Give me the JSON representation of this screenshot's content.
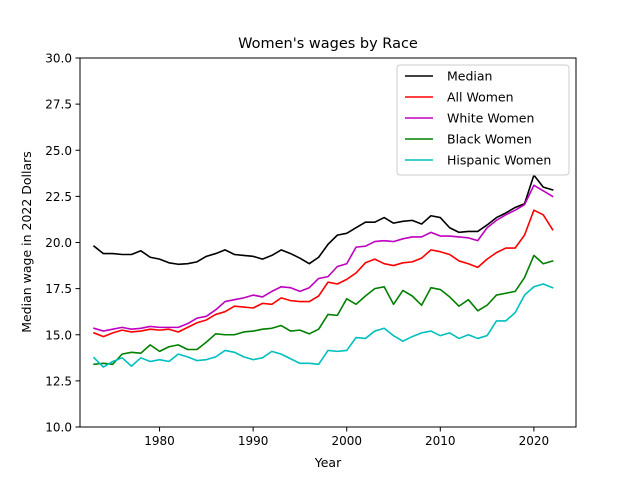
{
  "chart_data": {
    "type": "line",
    "title": "Women's wages by Race",
    "xlabel": "Year",
    "ylabel": "Median wage in 2022 Dollars",
    "xlim": [
      1971.5,
      2024.5
    ],
    "ylim": [
      10.0,
      30.0
    ],
    "xticks": [
      1980,
      1990,
      2000,
      2010,
      2020
    ],
    "yticks": [
      10.0,
      12.5,
      15.0,
      17.5,
      20.0,
      22.5,
      25.0,
      27.5,
      30.0
    ],
    "ytick_labels": [
      "10.0",
      "12.5",
      "15.0",
      "17.5",
      "20.0",
      "22.5",
      "25.0",
      "27.5",
      "30.0"
    ],
    "grid": false,
    "legend_position": "top-right",
    "x": [
      1973,
      1974,
      1975,
      1976,
      1977,
      1978,
      1979,
      1980,
      1981,
      1982,
      1983,
      1984,
      1985,
      1986,
      1987,
      1988,
      1989,
      1990,
      1991,
      1992,
      1993,
      1994,
      1995,
      1996,
      1997,
      1998,
      1999,
      2000,
      2001,
      2002,
      2003,
      2004,
      2005,
      2006,
      2007,
      2008,
      2009,
      2010,
      2011,
      2012,
      2013,
      2014,
      2015,
      2016,
      2017,
      2018,
      2019,
      2020,
      2021,
      2022
    ],
    "series": [
      {
        "name": "Median",
        "color": "#000000",
        "values": [
          19.8,
          19.4,
          19.4,
          19.35,
          19.35,
          19.55,
          19.2,
          19.1,
          18.9,
          18.82,
          18.85,
          18.95,
          19.25,
          19.4,
          19.6,
          19.35,
          19.3,
          19.25,
          19.1,
          19.3,
          19.6,
          19.4,
          19.15,
          18.85,
          19.2,
          19.9,
          20.4,
          20.5,
          20.8,
          21.1,
          21.1,
          21.35,
          21.05,
          21.15,
          21.2,
          21.0,
          21.45,
          21.35,
          20.8,
          20.55,
          20.6,
          20.6,
          20.95,
          21.35,
          21.6,
          21.9,
          22.1,
          23.65,
          23.0,
          22.85
        ]
      },
      {
        "name": "All Women",
        "color": "#ff0000",
        "values": [
          15.1,
          14.9,
          15.1,
          15.25,
          15.15,
          15.2,
          15.3,
          15.25,
          15.3,
          15.15,
          15.4,
          15.65,
          15.8,
          16.1,
          16.25,
          16.55,
          16.5,
          16.45,
          16.7,
          16.65,
          17.0,
          16.85,
          16.8,
          16.8,
          17.1,
          17.85,
          17.75,
          18.0,
          18.35,
          18.9,
          19.1,
          18.85,
          18.75,
          18.9,
          18.95,
          19.15,
          19.6,
          19.5,
          19.35,
          19.0,
          18.85,
          18.65,
          19.1,
          19.45,
          19.7,
          19.7,
          20.4,
          21.75,
          21.5,
          20.7
        ]
      },
      {
        "name": "White Women",
        "color": "#bf00bf",
        "values": [
          15.35,
          15.2,
          15.3,
          15.4,
          15.3,
          15.35,
          15.45,
          15.4,
          15.4,
          15.4,
          15.6,
          15.9,
          16.0,
          16.35,
          16.8,
          16.9,
          17.0,
          17.15,
          17.05,
          17.35,
          17.6,
          17.55,
          17.35,
          17.55,
          18.05,
          18.15,
          18.7,
          18.85,
          19.75,
          19.8,
          20.05,
          20.1,
          20.05,
          20.2,
          20.3,
          20.3,
          20.55,
          20.35,
          20.35,
          20.3,
          20.25,
          20.1,
          20.8,
          21.2,
          21.5,
          21.75,
          22.05,
          23.1,
          22.8,
          22.5
        ]
      },
      {
        "name": "Black Women",
        "color": "#008000",
        "values": [
          13.4,
          13.45,
          13.4,
          13.95,
          14.05,
          14.0,
          14.45,
          14.1,
          14.35,
          14.45,
          14.2,
          14.2,
          14.6,
          15.05,
          15.0,
          15.0,
          15.15,
          15.2,
          15.3,
          15.35,
          15.5,
          15.2,
          15.25,
          15.05,
          15.3,
          16.1,
          16.05,
          16.95,
          16.65,
          17.1,
          17.5,
          17.6,
          16.65,
          17.4,
          17.1,
          16.6,
          17.55,
          17.45,
          17.05,
          16.55,
          16.9,
          16.3,
          16.6,
          17.15,
          17.25,
          17.35,
          18.1,
          19.3,
          18.85,
          19.0
        ]
      },
      {
        "name": "Hispanic Women",
        "color": "#00bfbf",
        "values": [
          13.75,
          13.25,
          13.55,
          13.75,
          13.3,
          13.75,
          13.55,
          13.65,
          13.55,
          13.95,
          13.8,
          13.6,
          13.65,
          13.8,
          14.15,
          14.05,
          13.8,
          13.65,
          13.75,
          14.1,
          13.95,
          13.7,
          13.45,
          13.45,
          13.4,
          14.15,
          14.1,
          14.15,
          14.85,
          14.8,
          15.2,
          15.35,
          14.95,
          14.65,
          14.9,
          15.1,
          15.2,
          14.95,
          15.1,
          14.8,
          15.0,
          14.8,
          14.95,
          15.75,
          15.75,
          16.2,
          17.15,
          17.6,
          17.75,
          17.55
        ]
      }
    ]
  }
}
